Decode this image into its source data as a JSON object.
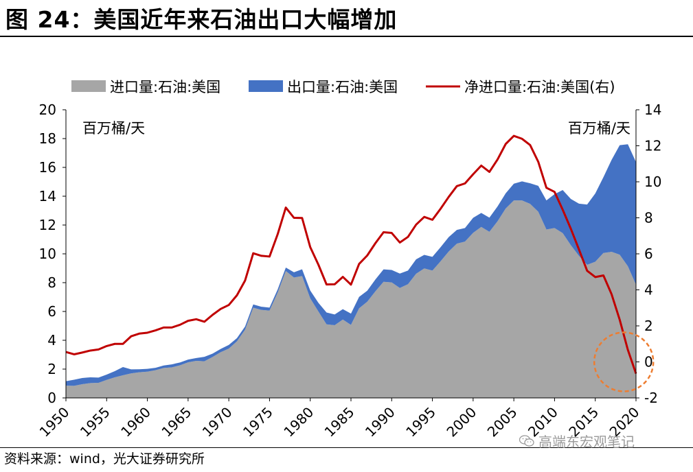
{
  "header": {
    "title": "图 24：美国近年来石油出口大幅增加"
  },
  "footer": {
    "source": "资料来源：wind，光大证券研究所"
  },
  "watermark": {
    "text": "高端东宏观笔记",
    "icon": "wechat-icon"
  },
  "colors": {
    "imports": "#a6a6a6",
    "exports": "#4472c4",
    "net": "#c00000",
    "highlight": "#ed7d31"
  },
  "chart_data": {
    "type": "area",
    "legend_position": "top",
    "grid": false,
    "yunit_left": "百万桶/天",
    "yunit_right": "百万桶/天",
    "ylim_left": [
      0,
      20
    ],
    "ylim_right": [
      -2,
      14
    ],
    "yticks_left": [
      "0",
      "2",
      "4",
      "6",
      "8",
      "10",
      "12",
      "14",
      "16",
      "18",
      "20"
    ],
    "yticks_right": [
      "-2",
      "0",
      "2",
      "4",
      "6",
      "8",
      "10",
      "12",
      "14"
    ],
    "xticks": [
      "1950",
      "1955",
      "1960",
      "1965",
      "1970",
      "1975",
      "1980",
      "1985",
      "1990",
      "1995",
      "2000",
      "2005",
      "2010",
      "2015",
      "2020"
    ],
    "x": [
      1950,
      1951,
      1952,
      1953,
      1954,
      1955,
      1956,
      1957,
      1958,
      1959,
      1960,
      1961,
      1962,
      1963,
      1964,
      1965,
      1966,
      1967,
      1968,
      1969,
      1970,
      1971,
      1972,
      1973,
      1974,
      1975,
      1976,
      1977,
      1978,
      1979,
      1980,
      1981,
      1982,
      1983,
      1984,
      1985,
      1986,
      1987,
      1988,
      1989,
      1990,
      1991,
      1992,
      1993,
      1994,
      1995,
      1996,
      1997,
      1998,
      1999,
      2000,
      2001,
      2002,
      2003,
      2004,
      2005,
      2006,
      2007,
      2008,
      2009,
      2010,
      2011,
      2012,
      2013,
      2014,
      2015,
      2016,
      2017,
      2018,
      2019,
      2020
    ],
    "series": [
      {
        "name": "进口量:石油:美国",
        "axis": "left",
        "kind": "area",
        "values": [
          0.85,
          0.84,
          0.95,
          1.03,
          1.05,
          1.25,
          1.43,
          1.57,
          1.7,
          1.78,
          1.82,
          1.92,
          2.08,
          2.12,
          2.26,
          2.47,
          2.57,
          2.54,
          2.84,
          3.17,
          3.42,
          3.93,
          4.74,
          6.26,
          6.11,
          6.06,
          7.31,
          8.81,
          8.36,
          8.46,
          6.91,
          6.0,
          5.11,
          5.05,
          5.44,
          5.07,
          6.22,
          6.68,
          7.4,
          8.06,
          8.02,
          7.63,
          7.89,
          8.62,
          8.99,
          8.84,
          9.48,
          10.16,
          10.71,
          10.85,
          11.46,
          11.87,
          11.53,
          12.26,
          13.15,
          13.71,
          13.71,
          13.47,
          12.92,
          11.69,
          11.79,
          11.44,
          10.6,
          9.86,
          9.24,
          9.45,
          10.06,
          10.14,
          9.94,
          9.14,
          7.86
        ]
      },
      {
        "name": "出口量:石油:美国",
        "axis": "left",
        "kind": "area",
        "values": [
          0.31,
          0.42,
          0.43,
          0.4,
          0.36,
          0.37,
          0.43,
          0.57,
          0.28,
          0.21,
          0.2,
          0.17,
          0.17,
          0.21,
          0.2,
          0.19,
          0.2,
          0.31,
          0.23,
          0.23,
          0.26,
          0.22,
          0.22,
          0.23,
          0.22,
          0.21,
          0.22,
          0.24,
          0.36,
          0.47,
          0.54,
          0.6,
          0.82,
          0.74,
          0.72,
          0.78,
          0.79,
          0.76,
          0.82,
          0.86,
          0.86,
          1.0,
          0.95,
          1.0,
          0.94,
          0.95,
          0.98,
          1.0,
          0.95,
          0.94,
          1.04,
          0.97,
          0.98,
          1.03,
          1.05,
          1.16,
          1.32,
          1.43,
          1.8,
          2.02,
          2.35,
          2.99,
          3.21,
          3.62,
          4.18,
          4.74,
          5.26,
          6.38,
          7.6,
          8.47,
          8.51
        ]
      },
      {
        "name": "净进口量:石油:美国(右)",
        "axis": "right",
        "kind": "line",
        "values": [
          0.55,
          0.42,
          0.52,
          0.63,
          0.69,
          0.88,
          1.0,
          1.0,
          1.42,
          1.57,
          1.62,
          1.75,
          1.91,
          1.91,
          2.06,
          2.28,
          2.37,
          2.23,
          2.61,
          2.94,
          3.16,
          3.7,
          4.52,
          6.03,
          5.89,
          5.85,
          7.09,
          8.57,
          8.0,
          7.99,
          6.37,
          5.4,
          4.3,
          4.31,
          4.72,
          4.29,
          5.44,
          5.91,
          6.59,
          7.2,
          7.16,
          6.63,
          6.94,
          7.62,
          8.05,
          7.89,
          8.5,
          9.16,
          9.76,
          9.91,
          10.42,
          10.9,
          10.55,
          11.24,
          12.1,
          12.55,
          12.39,
          12.04,
          11.11,
          9.67,
          9.44,
          8.45,
          7.39,
          6.24,
          5.06,
          4.71,
          4.8,
          3.76,
          2.34,
          0.67,
          -0.65
        ]
      }
    ],
    "annotations": [
      {
        "type": "circle",
        "x": 2018.5,
        "y_right": 0.0,
        "style": "dashed"
      }
    ]
  }
}
